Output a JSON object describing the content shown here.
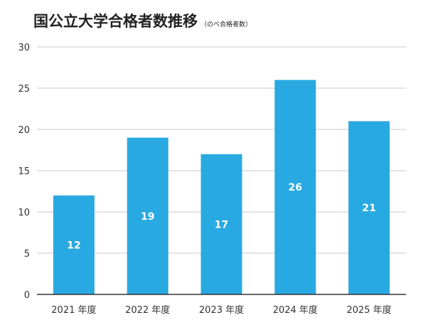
{
  "chart_data": {
    "type": "bar",
    "title": "国公立大学合格者数推移",
    "subtitle": "（のべ合格者数）",
    "categories": [
      "2021 年度",
      "2022 年度",
      "2023 年度",
      "2024 年度",
      "2025 年度"
    ],
    "values": [
      12,
      19,
      17,
      26,
      21
    ],
    "data_labels": [
      "12",
      "19",
      "17",
      "26",
      "21"
    ],
    "ylim": [
      0,
      30
    ],
    "yticks": [
      0,
      5,
      10,
      15,
      20,
      25,
      30
    ],
    "grid": true,
    "xlabel": "",
    "ylabel": "",
    "colors": {
      "bar": "#29a9e1",
      "grid": "#c8c8c8",
      "axis": "#333333",
      "label": "#ffffff"
    }
  }
}
